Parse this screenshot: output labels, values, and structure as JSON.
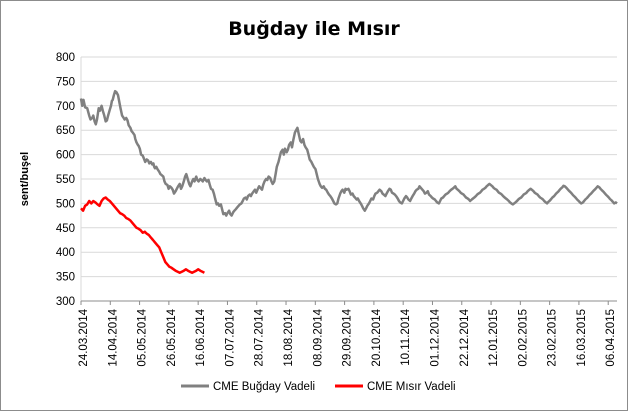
{
  "chart_data": {
    "type": "line",
    "title": "Buğday ile Mısır",
    "ylabel": "sent/buşel",
    "xlabel": "",
    "ylim": [
      300,
      800
    ],
    "yticks": [
      300,
      350,
      400,
      450,
      500,
      550,
      600,
      650,
      700,
      750,
      800
    ],
    "grid": true,
    "legend": "bottom",
    "xticks": [
      "24.03.2014",
      "14.04.2014",
      "05.05.2014",
      "26.05.2014",
      "16.06.2014",
      "07.07.2014",
      "28.07.2014",
      "18.08.2014",
      "08.09.2014",
      "29.09.2014",
      "20.10.2014",
      "10.11.2014",
      "01.12.2014",
      "22.12.2014",
      "12.01.2015",
      "02.02.2015",
      "23.02.2015",
      "16.03.2015",
      "06.04.2015"
    ],
    "series": [
      {
        "name": "CME Buğday Vadeli",
        "color": "#808080",
        "x": [
          0,
          0.3,
          0.6,
          1,
          1.5,
          2,
          2.3,
          2.7,
          3,
          3.3,
          3.6,
          3.9,
          4.3,
          4.6,
          5,
          5.3,
          5.6,
          6,
          6.3,
          6.6,
          7,
          7.3,
          7.5,
          7.7,
          8,
          8.3,
          8.6,
          9,
          9.3,
          9.6,
          10,
          10.3,
          10.6,
          11,
          11.3,
          11.6,
          12,
          12.3,
          12.6,
          13,
          13.2,
          13.5,
          13.8,
          14,
          14.3,
          14.6,
          15,
          15.3,
          15.6,
          16,
          16.3,
          16.6,
          17,
          17.3,
          17.6,
          17.8,
          18,
          18.3,
          18.6,
          19,
          19.3,
          19.6,
          20,
          20.3,
          20.6,
          21,
          21.3,
          21.6,
          22,
          22.3,
          22.6,
          23,
          23.3,
          23.6,
          24,
          24.3,
          24.6,
          25,
          25.3,
          25.6,
          26,
          26.3,
          26.6,
          27,
          27.3,
          27.6,
          28,
          28.3,
          28.6,
          29,
          29.3,
          29.6,
          30,
          30.3,
          30.6,
          31,
          31.3,
          31.6,
          32,
          32.3,
          32.6,
          33,
          33.3,
          33.6,
          34,
          34.3,
          34.6,
          35,
          35.3,
          35.6,
          36,
          36.3,
          36.6,
          37,
          37.3,
          37.6,
          38,
          38.3,
          38.6,
          39,
          39.3,
          39.6,
          40,
          40.3,
          40.6,
          41,
          41.3,
          41.6,
          42,
          42.3,
          42.6,
          43,
          43.3,
          43.6,
          44,
          44.3,
          44.6,
          45,
          45.3,
          45.6,
          46,
          46.3,
          46.6,
          47,
          47.3,
          47.6,
          48,
          48.3,
          48.6,
          49,
          49.3,
          49.6,
          50,
          50.3,
          50.6,
          51,
          51.3,
          51.6,
          52,
          52.3,
          52.6,
          53,
          53.3,
          53.6,
          54,
          54.3,
          54.6,
          55,
          55.3,
          55.6,
          56,
          56.3,
          56.6,
          57,
          57.3,
          57.6,
          58,
          58.3,
          58.6,
          59,
          59.3,
          59.6,
          60,
          60.3,
          60.6,
          61,
          61.3,
          61.6,
          62,
          62.3,
          62.6,
          63,
          63.3,
          63.6,
          64,
          64.3,
          64.6,
          65,
          65.3,
          65.6,
          66,
          66.3,
          66.6,
          67,
          67.3,
          67.6,
          68,
          68.3,
          68.6,
          69,
          69.3,
          69.6,
          70,
          70.3,
          70.6,
          71,
          71.3,
          71.6,
          72,
          72.3,
          72.6,
          73,
          73.3,
          73.6,
          74,
          74.3,
          74.6,
          75,
          75.3,
          75.6,
          76,
          76.3,
          76.6,
          77,
          77.3,
          77.6,
          78,
          78.3,
          78.6,
          79,
          79.3,
          79.6,
          80,
          80.3,
          80.6,
          81,
          81.3,
          81.6,
          82,
          82.3,
          82.6,
          83,
          83.3,
          83.6,
          84,
          84.3,
          84.6,
          85,
          85.3,
          85.6,
          86,
          86.3,
          86.6,
          87,
          87.3,
          87.6,
          88,
          88.3,
          88.6,
          89,
          89.3,
          89.6,
          90,
          90.3,
          90.6,
          91,
          91.3,
          91.6,
          92,
          92.3,
          92.6,
          93,
          93.3,
          93.6,
          94,
          94.3,
          94.6,
          95,
          95.3,
          95.6,
          96,
          96.3,
          96.6,
          97,
          97.3,
          97.6,
          98,
          98.3,
          98.6,
          99,
          99.3,
          99.6,
          100,
          100.3,
          100.6,
          101,
          101.3,
          101.6,
          102,
          102.3,
          102.6,
          103,
          103.3,
          103.6,
          104,
          104.3,
          104.6,
          105,
          105.3,
          105.6,
          106,
          106.3,
          106.6,
          107,
          107.3,
          107.6,
          108,
          108.3,
          108.6,
          109,
          109.3,
          109.6,
          110,
          110.3,
          110.6,
          111,
          111.3,
          111.6,
          112,
          112.3,
          112.6,
          113,
          113.3,
          113.6,
          114,
          114.3,
          114.6,
          115,
          115.3,
          115.6,
          116,
          116.3,
          116.6,
          117,
          117.3,
          117.6,
          118,
          118.3,
          118.6,
          119,
          119.3,
          119.6,
          120,
          120.3,
          120.6,
          121,
          121.3,
          121.6,
          122,
          122.3,
          122.6,
          123,
          123.3,
          123.6,
          124,
          124.3,
          124.6,
          125,
          125.3,
          125.6,
          126,
          126.3,
          126.6,
          127,
          127.3,
          127.6,
          128,
          128.3,
          128.6,
          129,
          129.3,
          129.6,
          130,
          130.3
        ],
        "values": [
          715,
          700,
          712,
          697,
          695,
          680,
          672,
          675,
          680,
          668,
          662,
          672,
          695,
          690,
          700,
          690,
          682,
          668,
          670,
          680,
          692,
          700,
          710,
          712,
          722,
          730,
          728,
          722,
          708,
          695,
          680,
          676,
          672,
          675,
          670,
          660,
          655,
          648,
          645,
          640,
          632,
          625,
          620,
          618,
          612,
          600,
          598,
          592,
          585,
          590,
          588,
          582,
          585,
          580,
          582,
          575,
          572,
          575,
          570,
          565,
          560,
          558,
          555,
          545,
          540,
          538,
          530,
          535,
          532,
          528,
          520,
          525,
          530,
          535,
          540,
          530,
          535,
          545,
          555,
          560,
          548,
          540,
          535,
          545,
          550,
          545,
          555,
          548,
          545,
          550,
          548,
          545,
          552,
          548,
          545,
          548,
          538,
          530,
          528,
          520,
          510,
          498,
          500,
          495,
          498,
          488,
          478,
          480,
          475,
          480,
          485,
          478,
          475,
          482,
          485,
          488,
          492,
          495,
          498,
          500,
          505,
          510,
          512,
          508,
          515,
          518,
          515,
          520,
          525,
          528,
          522,
          530,
          535,
          532,
          528,
          538,
          545,
          550,
          548,
          555,
          552,
          545,
          540,
          545,
          560,
          575,
          585,
          595,
          605,
          610,
          600,
          612,
          605,
          610,
          620,
          625,
          615,
          630,
          645,
          650,
          655,
          640,
          628,
          625,
          632,
          620,
          615,
          610,
          600,
          590,
          585,
          580,
          575,
          570,
          560,
          550,
          540,
          535,
          532,
          535,
          530,
          528,
          522,
          518,
          515,
          510,
          505,
          500,
          498,
          500,
          510,
          520,
          525,
          528,
          522,
          530,
          528,
          530,
          525,
          518,
          520,
          515,
          512,
          508,
          510,
          505,
          500,
          495,
          490,
          485,
          490,
          495,
          500,
          505,
          510,
          508,
          515,
          520,
          522,
          525,
          528,
          525,
          520,
          518,
          515,
          520,
          525,
          530,
          528,
          522,
          520,
          518,
          515,
          510,
          505,
          502,
          500,
          505,
          510,
          515,
          512,
          508,
          505,
          510,
          515,
          520,
          525,
          528,
          530,
          535,
          532,
          528,
          525,
          520,
          522,
          525,
          518,
          515,
          512,
          510,
          508,
          505,
          502,
          500,
          505,
          510,
          512,
          515,
          518,
          520,
          522,
          525,
          528,
          530,
          532,
          535,
          530,
          528,
          525,
          522,
          520,
          518,
          515,
          512,
          510,
          508,
          505,
          508,
          510,
          512,
          515,
          518,
          520,
          522,
          525,
          528,
          530,
          532,
          535,
          538,
          540,
          538,
          535,
          532,
          530,
          528,
          525,
          522,
          520,
          518,
          515,
          512,
          510,
          508,
          505,
          502,
          500,
          498,
          500,
          502,
          505,
          508,
          510,
          512,
          515,
          518,
          520,
          522,
          525,
          528,
          530,
          528,
          525,
          522,
          520,
          518,
          515,
          512,
          510,
          508,
          505,
          502,
          500,
          503,
          506,
          509,
          512,
          515,
          518,
          521,
          524,
          527,
          530,
          533,
          536,
          535,
          532,
          529,
          526,
          523,
          520,
          517,
          514,
          511,
          508,
          505,
          502,
          500,
          502,
          505,
          508,
          511,
          514,
          517,
          520,
          523,
          526,
          529,
          532,
          535,
          533,
          530,
          527,
          524,
          521,
          518,
          515,
          512,
          509,
          506,
          503,
          500,
          502,
          500
        ]
      },
      {
        "name": "CME Mısır Vadeli",
        "color": "#ff0000",
        "x": [
          0,
          0.5,
          1,
          1.5,
          2,
          2.5,
          3,
          3.5,
          4,
          4.5,
          5,
          5.5,
          6,
          6.5,
          7,
          7.5,
          8,
          8.5,
          9,
          9.5,
          10,
          10.5,
          11,
          11.5,
          12,
          12.5,
          13,
          13.5,
          14,
          14.5,
          15,
          15.5,
          16,
          16.5,
          17,
          17.5,
          18,
          18.5,
          19,
          19.5,
          20,
          20.5,
          21,
          21.5,
          22,
          22.5,
          23,
          23.5,
          24,
          24.5,
          25,
          25.5,
          26,
          26.5,
          27,
          27.5,
          28,
          28.5,
          29,
          29.5,
          30
        ],
        "values": [
          490,
          485,
          495,
          498,
          505,
          500,
          505,
          502,
          498,
          495,
          505,
          510,
          512,
          508,
          505,
          500,
          495,
          490,
          485,
          480,
          478,
          475,
          470,
          468,
          465,
          460,
          455,
          450,
          448,
          445,
          440,
          442,
          438,
          435,
          430,
          425,
          420,
          415,
          410,
          400,
          390,
          380,
          375,
          370,
          368,
          365,
          362,
          360,
          358,
          360,
          362,
          365,
          362,
          360,
          358,
          360,
          362,
          365,
          362,
          360,
          358
        ]
      }
    ]
  }
}
